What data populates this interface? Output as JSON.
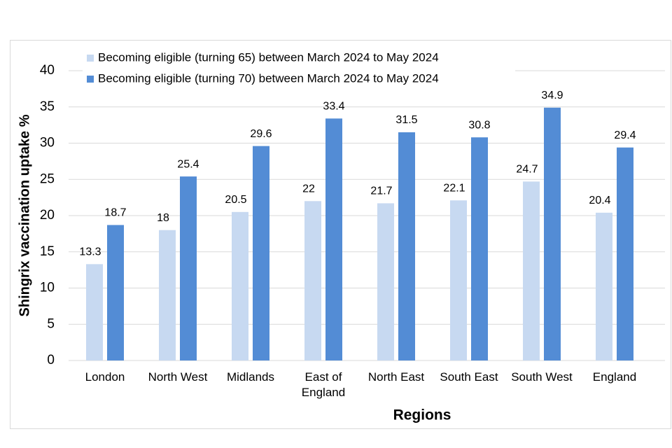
{
  "chart_data": {
    "type": "bar",
    "x_label": "Regions",
    "y_label": "Shingrix vaccination uptake %",
    "categories": [
      "London",
      "North West",
      "Midlands",
      "East of England",
      "North East",
      "South East",
      "South West",
      "England"
    ],
    "series": [
      {
        "name": "Becoming eligible (turning 65) between March 2024 to May 2024",
        "color": "#c7d9f1",
        "values": [
          13.3,
          18,
          20.5,
          22,
          21.7,
          22.1,
          24.7,
          20.4
        ]
      },
      {
        "name": "Becoming eligible (turning 70) between March 2024 to May 2024",
        "color": "#538cd5",
        "values": [
          18.7,
          25.4,
          29.6,
          33.4,
          31.5,
          30.8,
          34.9,
          29.4
        ]
      }
    ],
    "ylim": [
      0,
      40
    ],
    "yticks": [
      0,
      5,
      10,
      15,
      20,
      25,
      30,
      35,
      40
    ],
    "grid": true,
    "legend": "top-left"
  }
}
